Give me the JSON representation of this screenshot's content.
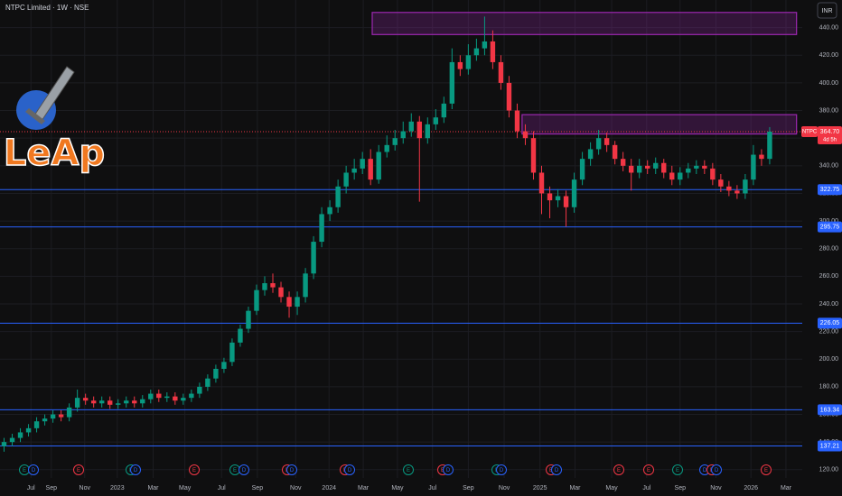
{
  "chart_data": {
    "type": "candlestick",
    "title": "NTPC Limited · 1W · NSE",
    "currency": "INR",
    "symbol": "NTPC",
    "countdown": "4d 5h",
    "logo": "LeAp",
    "last_price": {
      "value": 364.7,
      "label": "364.70"
    },
    "xlim": [
      -0.5,
      98
    ],
    "ylim": [
      114,
      460
    ],
    "grid": true,
    "up_color": "#089981",
    "down_color": "#f23645",
    "xticks": [
      {
        "value": 3.3,
        "label": "Jul"
      },
      {
        "value": 5.8,
        "label": "Sep"
      },
      {
        "value": 9.9,
        "label": "Nov"
      },
      {
        "value": 13.9,
        "label": "2023"
      },
      {
        "value": 18.3,
        "label": "Mar"
      },
      {
        "value": 22.2,
        "label": "May"
      },
      {
        "value": 26.7,
        "label": "Jul"
      },
      {
        "value": 31.1,
        "label": "Sep"
      },
      {
        "value": 35.8,
        "label": "Nov"
      },
      {
        "value": 39.9,
        "label": "2024"
      },
      {
        "value": 44.1,
        "label": "Mar"
      },
      {
        "value": 48.3,
        "label": "May"
      },
      {
        "value": 52.6,
        "label": "Jul"
      },
      {
        "value": 57,
        "label": "Sep"
      },
      {
        "value": 61.4,
        "label": "Nov"
      },
      {
        "value": 65.8,
        "label": "2025"
      },
      {
        "value": 70.1,
        "label": "Mar"
      },
      {
        "value": 74.6,
        "label": "May"
      },
      {
        "value": 78.9,
        "label": "Jul"
      },
      {
        "value": 83,
        "label": "Sep"
      },
      {
        "value": 87.4,
        "label": "Nov"
      },
      {
        "value": 91.7,
        "label": "2026"
      },
      {
        "value": 96,
        "label": "Mar"
      }
    ],
    "yticks": [
      {
        "value": 120,
        "label": "120.00"
      },
      {
        "value": 140,
        "label": "140.00"
      },
      {
        "value": 160,
        "label": "160.00"
      },
      {
        "value": 180,
        "label": "180.00"
      },
      {
        "value": 200,
        "label": "200.00"
      },
      {
        "value": 220,
        "label": "220.00"
      },
      {
        "value": 240,
        "label": "240.00"
      },
      {
        "value": 260,
        "label": "260.00"
      },
      {
        "value": 280,
        "label": "280.00"
      },
      {
        "value": 300,
        "label": "300.00"
      },
      {
        "value": 320,
        "label": "320.00"
      },
      {
        "value": 340,
        "label": "340.00"
      },
      {
        "value": 360,
        "label": "360.00"
      },
      {
        "value": 380,
        "label": "380.00"
      },
      {
        "value": 400,
        "label": "400.00"
      },
      {
        "value": 420,
        "label": "420.00"
      },
      {
        "value": 440,
        "label": "440.00"
      }
    ],
    "levels": [
      322.75,
      295.75,
      226.05,
      163.34,
      137.21
    ],
    "level_color": "#2962ff",
    "zones": [
      {
        "x0": 63.6,
        "x1": 97.3,
        "low": 363,
        "high": 377
      },
      {
        "x0": 45.2,
        "x1": 97.3,
        "low": 435,
        "high": 451
      }
    ],
    "zone_color": "#9c27b0",
    "events": [
      "E",
      "D",
      "E",
      "E",
      "D",
      "E",
      "E",
      "D",
      "E",
      "D",
      "E",
      "D",
      "E",
      "E",
      "D",
      "E",
      "D",
      "E",
      "D",
      "E",
      "E",
      "E",
      "D",
      "E",
      "D",
      "E"
    ],
    "open": [
      137,
      140,
      143,
      147,
      150,
      155,
      157,
      160,
      158,
      165,
      172,
      170,
      168,
      170,
      167,
      168,
      170,
      168,
      171,
      175,
      172,
      173,
      170,
      172,
      175,
      180,
      186,
      193,
      198,
      212,
      222,
      235,
      250,
      255,
      252,
      245,
      238,
      245,
      262,
      285,
      305,
      310,
      325,
      335,
      338,
      345,
      330,
      350,
      355,
      360,
      365,
      372,
      360,
      370,
      375,
      385,
      415,
      410,
      420,
      425,
      430,
      415,
      400,
      380,
      365,
      360,
      335,
      320,
      315,
      318,
      310,
      330,
      345,
      352,
      360,
      355,
      345,
      340,
      335,
      340,
      338,
      342,
      335,
      330,
      335,
      338,
      340,
      338,
      330,
      325,
      322,
      320,
      330,
      348,
      345
    ],
    "high": [
      143,
      146,
      150,
      153,
      158,
      160,
      163,
      163,
      168,
      178,
      175,
      173,
      173,
      173,
      171,
      173,
      173,
      174,
      178,
      178,
      176,
      176,
      175,
      178,
      183,
      189,
      196,
      201,
      215,
      225,
      238,
      254,
      260,
      262,
      256,
      249,
      249,
      266,
      289,
      310,
      315,
      330,
      340,
      345,
      350,
      352,
      355,
      362,
      366,
      372,
      378,
      376,
      375,
      381,
      390,
      425,
      420,
      428,
      432,
      448,
      438,
      420,
      405,
      385,
      370,
      365,
      340,
      325,
      323,
      322,
      335,
      350,
      357,
      366,
      364,
      358,
      350,
      345,
      345,
      344,
      346,
      345,
      340,
      339,
      342,
      344,
      344,
      342,
      334,
      329,
      326,
      334,
      355,
      352,
      368
    ],
    "low": [
      133,
      137,
      140,
      144,
      147,
      152,
      154,
      155,
      155,
      162,
      167,
      165,
      165,
      164,
      164,
      165,
      165,
      165,
      168,
      169,
      169,
      167,
      167,
      169,
      172,
      177,
      183,
      190,
      195,
      209,
      219,
      232,
      246,
      248,
      241,
      230,
      232,
      241,
      258,
      281,
      300,
      306,
      320,
      330,
      334,
      326,
      327,
      346,
      351,
      356,
      361,
      314,
      356,
      366,
      371,
      381,
      405,
      406,
      416,
      420,
      410,
      395,
      375,
      360,
      355,
      330,
      305,
      302,
      310,
      296,
      306,
      326,
      340,
      348,
      350,
      341,
      336,
      322,
      331,
      334,
      334,
      331,
      326,
      326,
      331,
      334,
      334,
      326,
      321,
      318,
      316,
      316,
      326,
      340,
      341
    ],
    "close": [
      140,
      143,
      147,
      150,
      155,
      157,
      160,
      158,
      165,
      172,
      170,
      168,
      170,
      167,
      168,
      170,
      168,
      171,
      175,
      172,
      173,
      170,
      172,
      175,
      180,
      186,
      193,
      198,
      212,
      222,
      235,
      250,
      255,
      252,
      245,
      238,
      245,
      262,
      285,
      305,
      310,
      325,
      335,
      338,
      345,
      330,
      350,
      355,
      360,
      365,
      372,
      360,
      370,
      375,
      385,
      415,
      410,
      420,
      425,
      430,
      415,
      400,
      380,
      365,
      360,
      335,
      320,
      315,
      318,
      310,
      330,
      345,
      352,
      360,
      355,
      345,
      340,
      335,
      340,
      338,
      342,
      335,
      330,
      335,
      338,
      340,
      338,
      330,
      325,
      322,
      320,
      330,
      348,
      345,
      364.7
    ]
  }
}
